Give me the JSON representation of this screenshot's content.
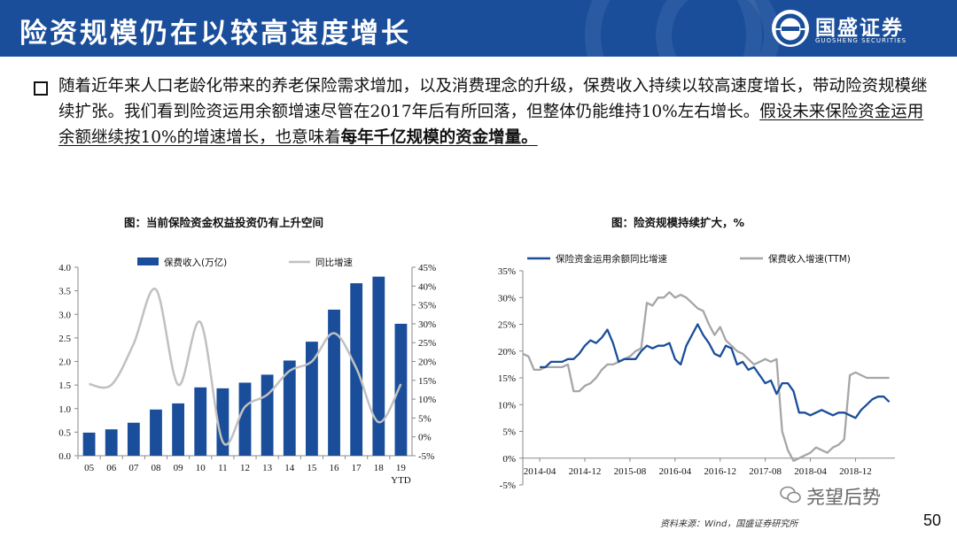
{
  "header": {
    "title": "险资规模仍在以较高速度增长",
    "logo_name": "国盛证券",
    "logo_sub": "GUOSHENG SECURITIES",
    "bg_color": "#1a4e9a"
  },
  "bullet": {
    "text_plain_1": "随着近年来人口老龄化带来的养老保险需求增加，以及消费理念的升级，保费收入持续以较高速度增长，带动险资规模继续扩张。我们看到险资运用余额增速尽管在2017年后有所回落，但整体仍能维持10%左右增长。",
    "text_underlined": "假设未来保险资金运用余额继续按10%的增速增长，也意味着",
    "text_bold_underlined": "每年千亿规模的资金增量。"
  },
  "charts": {
    "chart1_title": "图：当前保险资金权益投资仍有上升空间",
    "chart2_title": "图：险资规模持续扩大，%"
  },
  "chart_data": [
    {
      "type": "bar",
      "title": "图：当前保险资金权益投资仍有上升空间",
      "categories": [
        "05",
        "06",
        "07",
        "08",
        "09",
        "10",
        "11",
        "12",
        "13",
        "14",
        "15",
        "16",
        "17",
        "18",
        "19"
      ],
      "last_category_sub": "YTD",
      "series": [
        {
          "name": "保费收入(万亿)",
          "kind": "bar",
          "axis": "left",
          "color": "#1a4e9a",
          "values": [
            0.49,
            0.56,
            0.7,
            0.98,
            1.11,
            1.45,
            1.43,
            1.55,
            1.72,
            2.02,
            2.42,
            3.1,
            3.66,
            3.8,
            2.8
          ]
        },
        {
          "name": "同比增速",
          "kind": "line",
          "axis": "right",
          "color": "#c0c0c0",
          "values": [
            14.0,
            13.8,
            24.7,
            39.1,
            13.8,
            30.4,
            -1.3,
            8.0,
            11.2,
            17.5,
            20.0,
            27.5,
            18.2,
            3.9,
            14.0
          ]
        }
      ],
      "ylim_left": [
        0,
        4.0
      ],
      "yticks_left": [
        "0.0",
        "0.5",
        "1.0",
        "1.5",
        "2.0",
        "2.5",
        "3.0",
        "3.5",
        "4.0"
      ],
      "ylim_right": [
        -5,
        45
      ],
      "yticks_right": [
        "-5%",
        "0%",
        "5%",
        "10%",
        "15%",
        "20%",
        "25%",
        "30%",
        "35%",
        "40%",
        "45%"
      ],
      "grid": false,
      "legend": "top"
    },
    {
      "type": "line",
      "title": "图：险资规模持续扩大，%",
      "x_ticks": [
        "2014-04",
        "2014-12",
        "2015-08",
        "2016-04",
        "2016-12",
        "2017-08",
        "2018-04",
        "2018-12"
      ],
      "ylim": [
        -5,
        35
      ],
      "yticks": [
        "-5%",
        "0%",
        "5%",
        "10%",
        "15%",
        "20%",
        "25%",
        "30%",
        "35%"
      ],
      "grid": false,
      "legend": "top",
      "series": [
        {
          "name": "保险资金运用余额同比增速",
          "color": "#1a4e9a",
          "x": [
            "2014-04",
            "2014-05",
            "2014-06",
            "2014-07",
            "2014-08",
            "2014-09",
            "2014-10",
            "2014-11",
            "2014-12",
            "2015-01",
            "2015-02",
            "2015-03",
            "2015-04",
            "2015-05",
            "2015-06",
            "2015-07",
            "2015-08",
            "2015-09",
            "2015-10",
            "2015-11",
            "2015-12",
            "2016-01",
            "2016-02",
            "2016-03",
            "2016-04",
            "2016-05",
            "2016-06",
            "2016-07",
            "2016-08",
            "2016-09",
            "2016-10",
            "2016-11",
            "2016-12",
            "2017-01",
            "2017-02",
            "2017-03",
            "2017-04",
            "2017-05",
            "2017-06",
            "2017-07",
            "2017-08",
            "2017-09",
            "2017-10",
            "2017-11",
            "2017-12",
            "2018-01",
            "2018-02",
            "2018-03",
            "2018-04",
            "2018-05",
            "2018-06",
            "2018-07",
            "2018-08",
            "2018-09",
            "2018-10",
            "2018-11",
            "2018-12",
            "2019-01",
            "2019-02",
            "2019-03",
            "2019-04",
            "2019-05",
            "2019-06"
          ],
          "values": [
            17.0,
            17.0,
            18.0,
            18.0,
            18.0,
            18.5,
            18.5,
            19.5,
            21.0,
            22.0,
            21.5,
            22.5,
            24.0,
            21.5,
            18.0,
            18.5,
            18.5,
            18.5,
            20.0,
            21.0,
            20.5,
            21.0,
            21.0,
            21.5,
            18.5,
            17.5,
            21.0,
            23.0,
            25.0,
            23.0,
            21.5,
            19.5,
            19.0,
            21.0,
            20.5,
            17.5,
            18.0,
            16.5,
            17.0,
            15.5,
            14.0,
            14.5,
            12.0,
            14.0,
            14.0,
            12.5,
            8.5,
            8.5,
            8.0,
            8.5,
            9.0,
            8.5,
            8.0,
            8.5,
            8.5,
            8.0,
            7.5,
            9.0,
            10.0,
            11.0,
            11.5,
            11.5,
            10.5
          ]
        },
        {
          "name": "保费收入增速(TTM)",
          "color": "#a6a6a6",
          "x": [
            "2014-01",
            "2014-02",
            "2014-03",
            "2014-04",
            "2014-05",
            "2014-06",
            "2014-07",
            "2014-08",
            "2014-09",
            "2014-10",
            "2014-11",
            "2014-12",
            "2015-01",
            "2015-02",
            "2015-03",
            "2015-04",
            "2015-05",
            "2015-06",
            "2015-07",
            "2015-08",
            "2015-09",
            "2015-10",
            "2015-11",
            "2015-12",
            "2016-01",
            "2016-02",
            "2016-03",
            "2016-04",
            "2016-05",
            "2016-06",
            "2016-07",
            "2016-08",
            "2016-09",
            "2016-10",
            "2016-11",
            "2016-12",
            "2017-01",
            "2017-02",
            "2017-03",
            "2017-04",
            "2017-05",
            "2017-06",
            "2017-07",
            "2017-08",
            "2017-09",
            "2017-10",
            "2017-11",
            "2017-12",
            "2018-01",
            "2018-02",
            "2018-03",
            "2018-04",
            "2018-05",
            "2018-06",
            "2018-07",
            "2018-08",
            "2018-09",
            "2018-10",
            "2018-11",
            "2018-12",
            "2019-01",
            "2019-02",
            "2019-03",
            "2019-04",
            "2019-05",
            "2019-06"
          ],
          "values": [
            19.5,
            19.0,
            16.5,
            16.5,
            17.0,
            17.0,
            17.0,
            17.0,
            17.5,
            12.5,
            12.5,
            13.5,
            14.0,
            15.0,
            16.5,
            17.5,
            17.5,
            18.0,
            18.5,
            19.0,
            20.0,
            20.5,
            29.0,
            28.5,
            30.0,
            30.0,
            31.0,
            30.0,
            30.5,
            30.0,
            29.0,
            28.0,
            27.5,
            25.0,
            23.0,
            24.5,
            22.0,
            21.0,
            20.0,
            19.5,
            18.5,
            17.5,
            18.0,
            18.5,
            18.0,
            18.5,
            5.0,
            1.5,
            -0.5,
            0.0,
            0.5,
            1.0,
            2.0,
            1.5,
            1.0,
            2.0,
            2.5,
            3.5,
            15.5,
            16.0,
            15.5,
            15.0,
            15.0,
            15.0,
            15.0,
            15.0
          ]
        }
      ]
    }
  ],
  "footer": {
    "source": "资料来源：Wind，国盛证券研究所",
    "wechat": "尧望后势",
    "page_number": "50"
  }
}
